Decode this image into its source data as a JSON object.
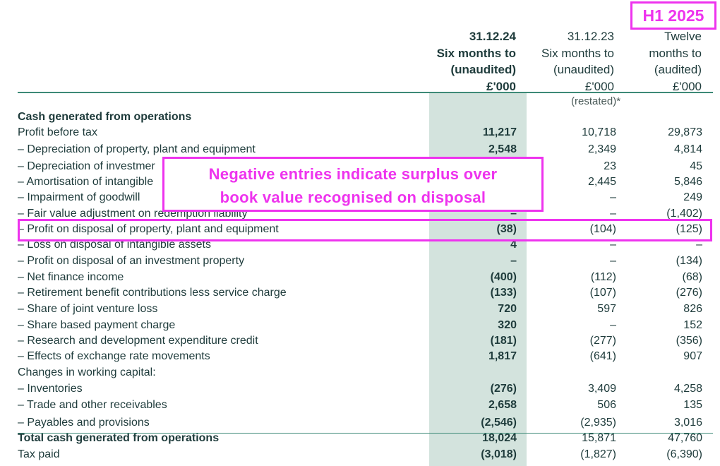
{
  "tag": "H1 2025",
  "note": {
    "line1": "Negative entries indicate surplus over",
    "line2": "book value recognised on disposal"
  },
  "columns": [
    {
      "l1": "31.12.24",
      "l2": "Six months to",
      "l3": "(unaudited)",
      "l4": "£'000"
    },
    {
      "l1": "31.12.23",
      "l2": "Six months to",
      "l3": "(unaudited)",
      "l4": "£'000"
    },
    {
      "l1": "Twelve",
      "l2": "months to",
      "l3": "(audited)",
      "l4": "£'000"
    }
  ],
  "restated": "(restated)*",
  "rows": [
    {
      "label": "Cash generated from operations",
      "v1": "",
      "v2": "",
      "v3": ""
    },
    {
      "label": "Profit before tax",
      "v1": "11,217",
      "v2": "10,718",
      "v3": "29,873"
    },
    {
      "label": "– Depreciation of property, plant and equipment",
      "v1": "2,548",
      "v2": "2,349",
      "v3": "4,814"
    },
    {
      "label": "– Depreciation of investmer",
      "v1": "",
      "v2": "23",
      "v3": "45"
    },
    {
      "label": "– Amortisation of intangible",
      "v1": "",
      "v2": "2,445",
      "v3": "5,846"
    },
    {
      "label": "– Impairment of goodwill",
      "v1": "",
      "v2": "–",
      "v3": "249"
    },
    {
      "label": "– Fair value adjustment on redemption liability",
      "v1": "–",
      "v2": "–",
      "v3": "(1,402)"
    },
    {
      "label": "– Profit on disposal of property, plant and equipment",
      "v1": "(38)",
      "v2": "(104)",
      "v3": "(125)"
    },
    {
      "label": "– Loss on disposal of intangible assets",
      "v1": "4",
      "v2": "–",
      "v3": "–"
    },
    {
      "label": "– Profit on disposal of an investment property",
      "v1": "–",
      "v2": "–",
      "v3": "(134)"
    },
    {
      "label": "– Net finance income",
      "v1": "(400)",
      "v2": "(112)",
      "v3": "(68)"
    },
    {
      "label": "– Retirement benefit contributions less service charge",
      "v1": "(133)",
      "v2": "(107)",
      "v3": "(276)"
    },
    {
      "label": "– Share of joint venture loss",
      "v1": "720",
      "v2": "597",
      "v3": "826"
    },
    {
      "label": "– Share based payment charge",
      "v1": "320",
      "v2": "–",
      "v3": "152"
    },
    {
      "label": "– Research and development expenditure credit",
      "v1": "(181)",
      "v2": "(277)",
      "v3": "(356)"
    },
    {
      "label": "– Effects of exchange rate movements",
      "v1": "1,817",
      "v2": "(641)",
      "v3": "907"
    },
    {
      "label": "Changes in working capital:",
      "v1": "",
      "v2": "",
      "v3": ""
    },
    {
      "label": "– Inventories",
      "v1": "(276)",
      "v2": "3,409",
      "v3": "4,258"
    },
    {
      "label": "– Trade and other receivables",
      "v1": "2,658",
      "v2": "506",
      "v3": "135"
    },
    {
      "label": "– Payables and provisions",
      "v1": "(2,546)",
      "v2": "(2,935)",
      "v3": "3,016"
    },
    {
      "label": "Total cash generated from operations",
      "v1": "18,024",
      "v2": "15,871",
      "v3": "47,760"
    },
    {
      "label": "Tax paid",
      "v1": "(3,018)",
      "v2": "(1,827)",
      "v3": "(6,390)"
    }
  ],
  "colors": {
    "accent": "#ee33ee",
    "rule": "#3d8a77",
    "shade": "#d3e3dd",
    "text": "#1e3b3b"
  }
}
